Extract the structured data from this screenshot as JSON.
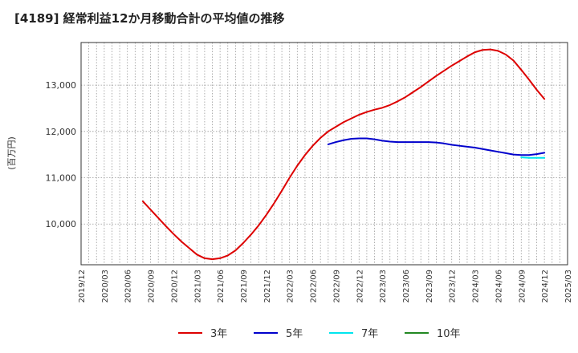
{
  "chart_data": {
    "type": "line",
    "title": "[4189]  経常利益12か月移動合計の平均値の推移",
    "ylabel": "(百万円)",
    "xlabel": "",
    "ylim": [
      9120,
      13920
    ],
    "yticks": [
      10000,
      11000,
      12000,
      13000
    ],
    "ytick_labels": [
      "10,000",
      "11,000",
      "12,000",
      "13,000"
    ],
    "xticks": [
      "2019/12",
      "2020/03",
      "2020/06",
      "2020/09",
      "2020/12",
      "2021/03",
      "2021/06",
      "2021/09",
      "2021/12",
      "2022/03",
      "2022/06",
      "2022/09",
      "2022/12",
      "2023/03",
      "2023/06",
      "2023/09",
      "2023/12",
      "2024/03",
      "2024/06",
      "2024/09",
      "2024/12",
      "2025/03"
    ],
    "x_start": "2019/12",
    "x_months": 63,
    "grid": true,
    "legend_position": "bottom",
    "series": [
      {
        "name": "3年",
        "color": "#dd0000",
        "start": "2020/08",
        "values": [
          10490,
          10310,
          10130,
          9950,
          9780,
          9620,
          9480,
          9340,
          9260,
          9240,
          9260,
          9320,
          9430,
          9590,
          9770,
          9970,
          10200,
          10450,
          10720,
          11000,
          11260,
          11490,
          11690,
          11860,
          12000,
          12100,
          12200,
          12280,
          12360,
          12420,
          12470,
          12510,
          12570,
          12650,
          12740,
          12850,
          12960,
          13080,
          13200,
          13310,
          13420,
          13520,
          13620,
          13710,
          13760,
          13770,
          13740,
          13660,
          13530,
          13330,
          13120,
          12900,
          12700
        ]
      },
      {
        "name": "5年",
        "color": "#0000cc",
        "start": "2022/08",
        "values": [
          11720,
          11770,
          11810,
          11840,
          11850,
          11850,
          11830,
          11800,
          11780,
          11770,
          11770,
          11770,
          11770,
          11770,
          11760,
          11740,
          11710,
          11690,
          11670,
          11650,
          11620,
          11590,
          11560,
          11530,
          11500,
          11490,
          11490,
          11510,
          11540
        ]
      },
      {
        "name": "7年",
        "color": "#00e5ee",
        "start": "2024/09",
        "values": [
          11440,
          11430,
          11430,
          11430
        ]
      },
      {
        "name": "10年",
        "color": "#228822",
        "start": "2024/12",
        "values": []
      }
    ]
  }
}
